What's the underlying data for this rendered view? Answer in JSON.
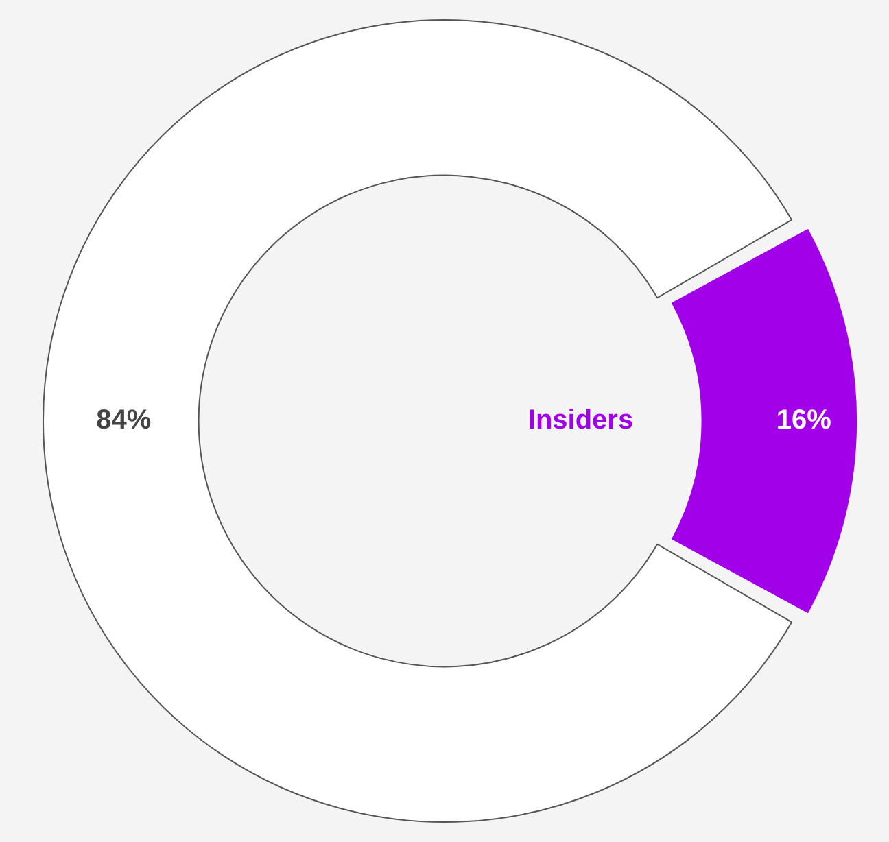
{
  "chart_data": {
    "type": "donut",
    "categories": [
      "Insiders",
      null
    ],
    "values": [
      16,
      84
    ],
    "colors": [
      "#a100e8",
      "#ffffff"
    ],
    "value_labels": [
      "16%",
      "84%"
    ],
    "legend": false
  }
}
